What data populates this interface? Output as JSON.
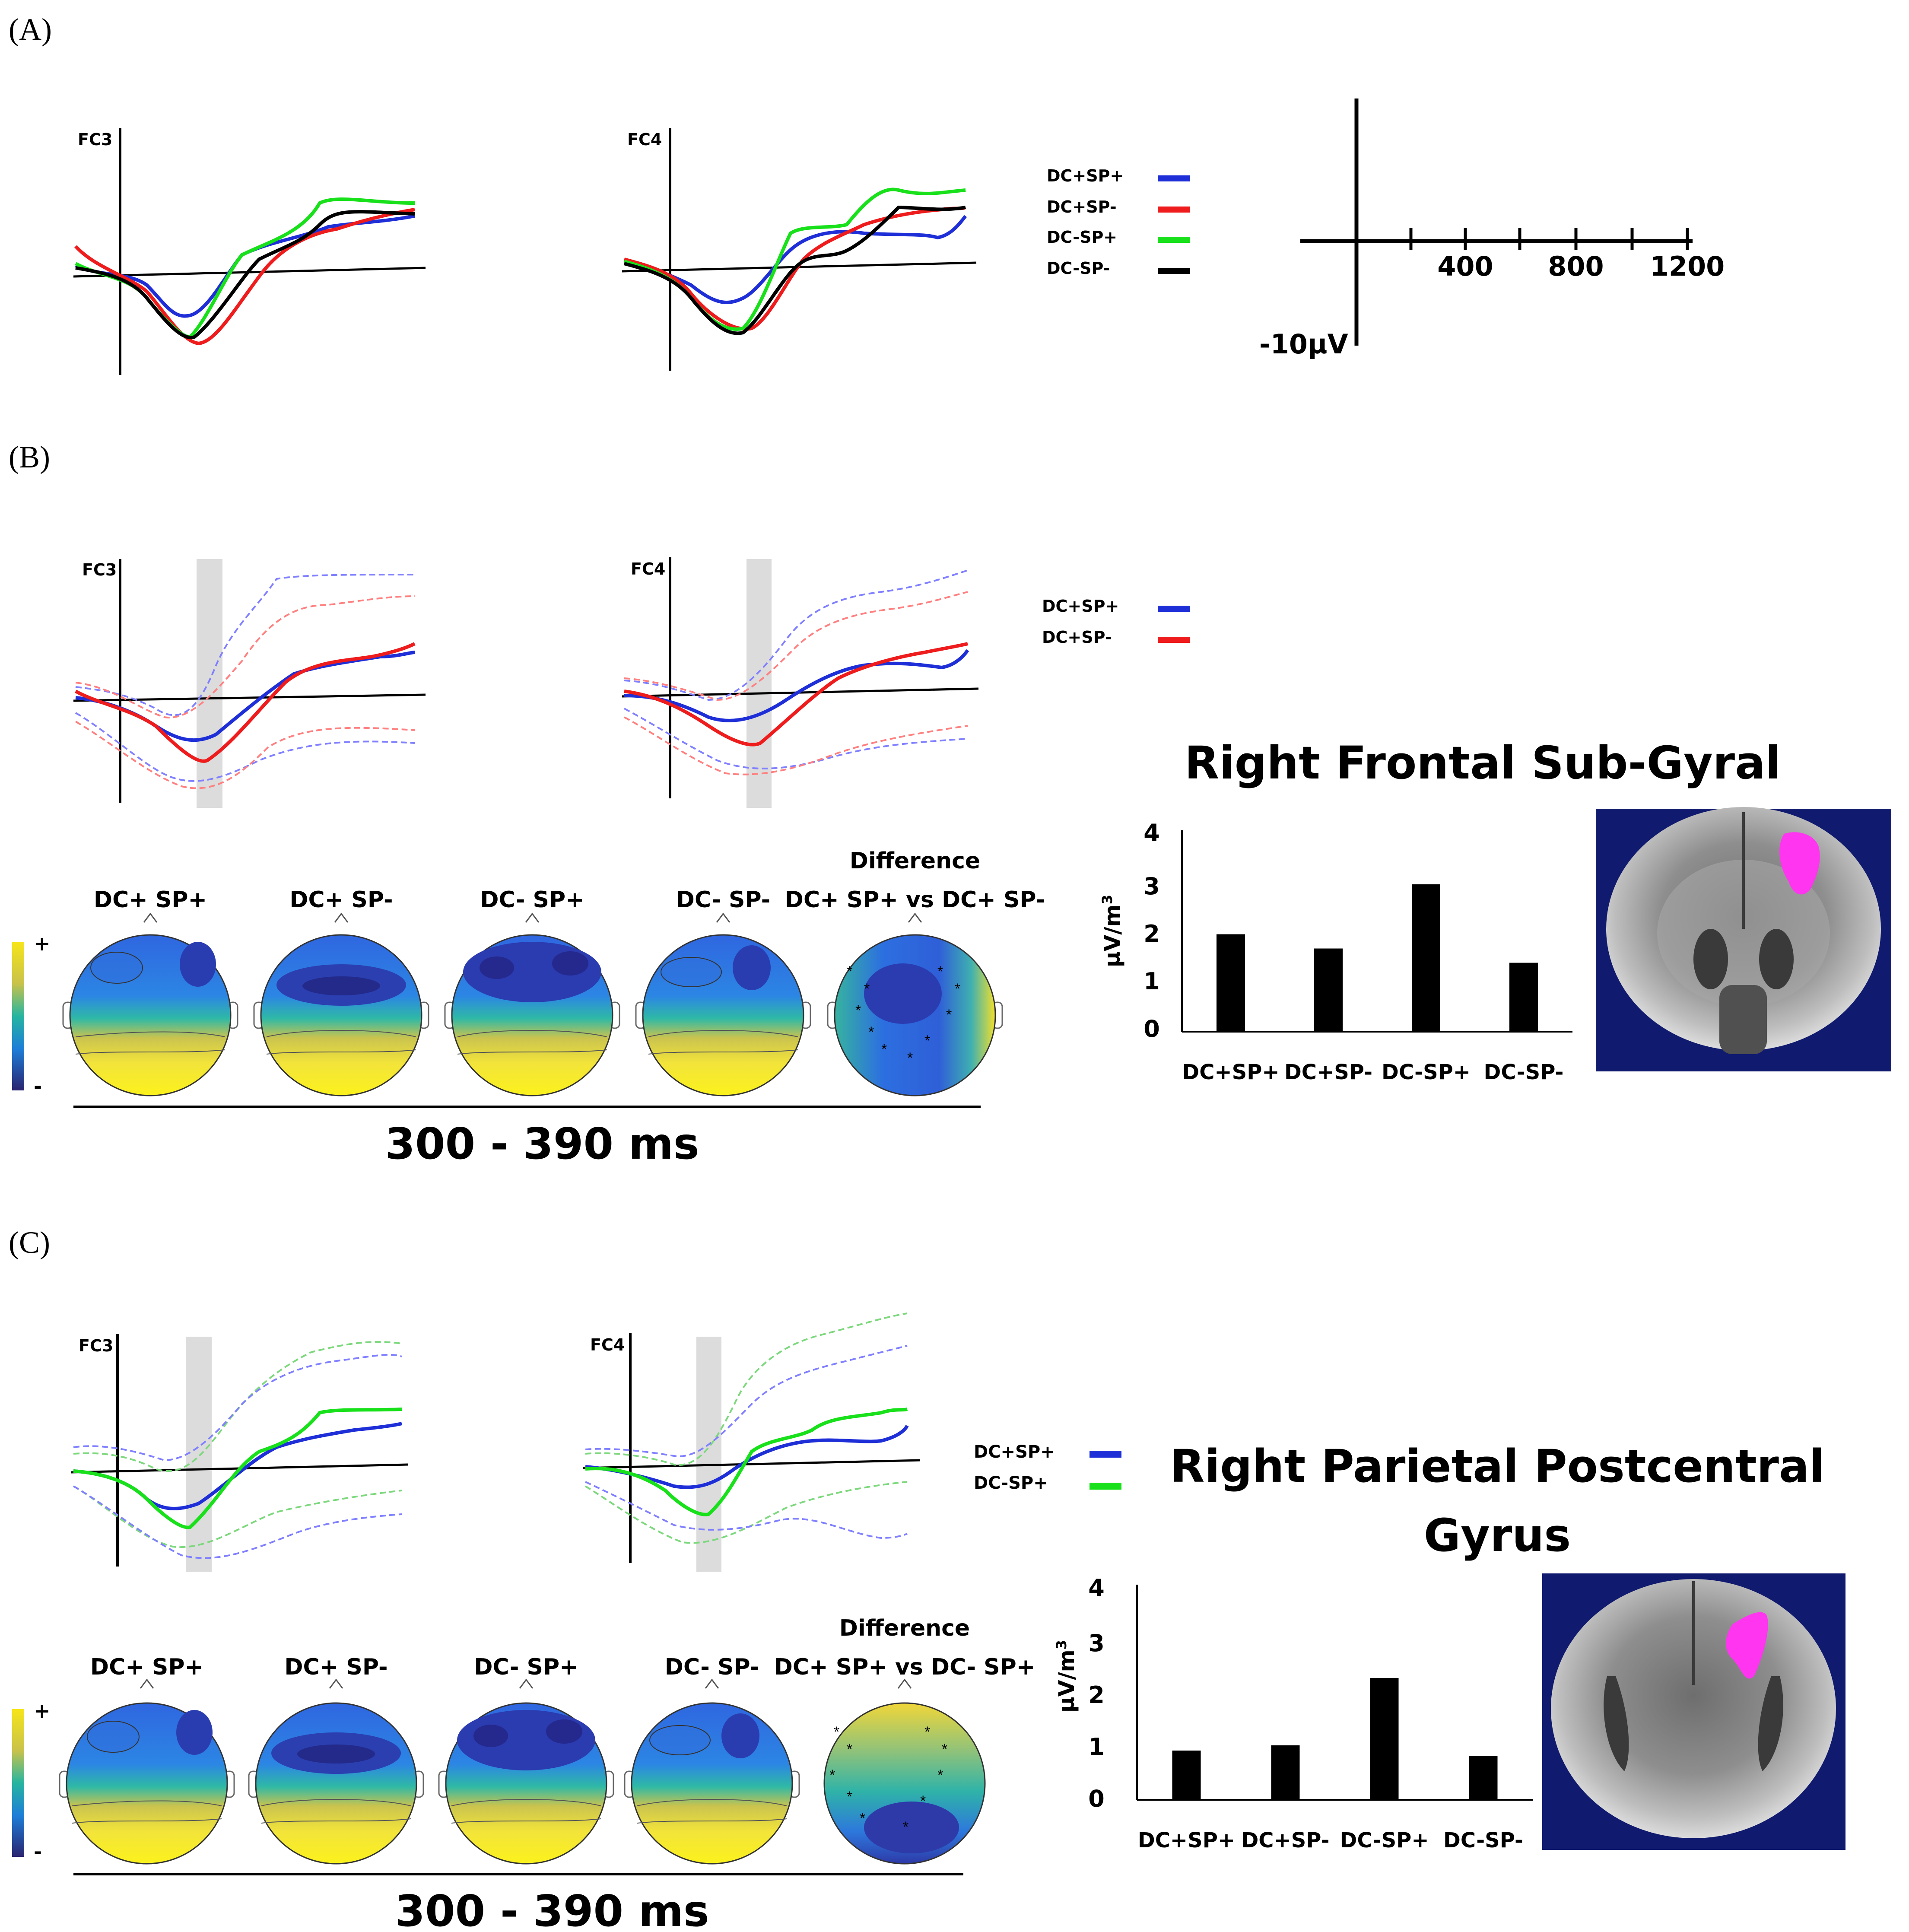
{
  "panels": {
    "A": {
      "label": "(A)",
      "erp": {
        "left_title": "FC3",
        "right_title": "FC4",
        "legend": [
          {
            "name": "DC+SP+",
            "color": "#1f2fd8"
          },
          {
            "name": "DC+SP-",
            "color": "#ee1c1c"
          },
          {
            "name": "DC-SP+",
            "color": "#18e01a"
          },
          {
            "name": "DC-SP-",
            "color": "#000000"
          }
        ]
      },
      "scale": {
        "ticks": [
          "400",
          "800",
          "1200"
        ],
        "ylabel": "-10µV"
      }
    },
    "B": {
      "label": "(B)",
      "erp": {
        "left_title": "FC3",
        "right_title": "FC4",
        "legend": [
          {
            "name": "DC+SP+",
            "color": "#1f2fd8"
          },
          {
            "name": "DC+SP-",
            "color": "#ee1c1c"
          }
        ]
      },
      "topomaps": {
        "labels": [
          "DC+ SP+",
          "DC+ SP-",
          "DC- SP+",
          "DC- SP-"
        ],
        "difference_title": "Difference",
        "difference_label": "DC+ SP+ vs DC+ SP-",
        "colorbar_plus": "+",
        "colorbar_minus": "-",
        "time_window": "300 - 390 ms"
      },
      "region_title": "Right Frontal Sub-Gyral",
      "bar": {
        "ylabel": "µV/m",
        "ylabel_sup": "3",
        "yticks": [
          "0",
          "1",
          "2",
          "3",
          "4"
        ]
      }
    },
    "C": {
      "label": "(C)",
      "erp": {
        "left_title": "FC3",
        "right_title": "FC4",
        "legend": [
          {
            "name": "DC+SP+",
            "color": "#1f2fd8"
          },
          {
            "name": "DC-SP+",
            "color": "#18e01a"
          }
        ]
      },
      "topomaps": {
        "labels": [
          "DC+ SP+",
          "DC+ SP-",
          "DC- SP+",
          "DC- SP-"
        ],
        "difference_title": "Difference",
        "difference_label": "DC+ SP+ vs DC- SP+",
        "colorbar_plus": "+",
        "colorbar_minus": "-",
        "time_window": "300 - 390 ms"
      },
      "region_title_line1": "Right Parietal Postcentral",
      "region_title_line2": "Gyrus",
      "bar": {
        "ylabel": "µV/m",
        "ylabel_sup": "3",
        "yticks": [
          "0",
          "1",
          "2",
          "3",
          "4"
        ]
      }
    }
  },
  "chart_data": [
    {
      "type": "bar",
      "title": "Right Frontal Sub-Gyral",
      "categories": [
        "DC+SP+",
        "DC+SP-",
        "DC-SP+",
        "DC-SP-"
      ],
      "values": [
        2.05,
        1.75,
        3.1,
        1.45
      ],
      "ylabel": "µV/m3",
      "ylim": [
        0,
        4
      ]
    },
    {
      "type": "bar",
      "title": "Right Parietal Postcentral Gyrus",
      "categories": [
        "DC+SP+",
        "DC+SP-",
        "DC-SP+",
        "DC-SP-"
      ],
      "values": [
        0.95,
        1.05,
        2.35,
        0.85
      ],
      "ylabel": "µV/m3",
      "ylim": [
        0,
        4
      ]
    }
  ]
}
